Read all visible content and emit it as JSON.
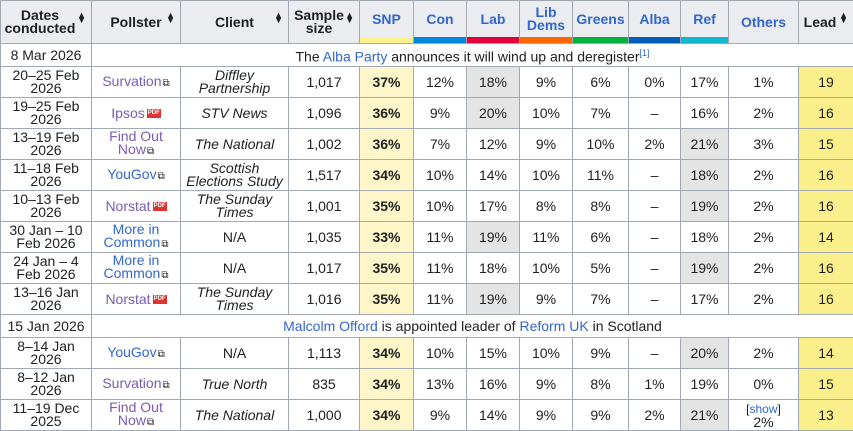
{
  "headers": {
    "dates": "Dates conducted",
    "pollster": "Pollster",
    "client": "Client",
    "sample": "Sample size",
    "lead": "Lead",
    "others": "Others",
    "parties": [
      {
        "name": "SNP",
        "color": "#fdf38e"
      },
      {
        "name": "Con",
        "color": "#0087dc"
      },
      {
        "name": "Lab",
        "color": "#e4003b"
      },
      {
        "name": "Lib Dems",
        "color": "#ff6600"
      },
      {
        "name": "Greens",
        "color": "#00b140"
      },
      {
        "name": "Alba",
        "color": "#005eb8"
      },
      {
        "name": "Ref",
        "color": "#12b6cf"
      }
    ]
  },
  "rows": [
    {
      "type": "event",
      "date": "8 Mar 2026",
      "parts": [
        {
          "t": "The "
        },
        {
          "t": "Alba Party",
          "link": true
        },
        {
          "t": " announces it will wind up and deregister"
        },
        {
          "t": "[1]",
          "sup": true
        }
      ]
    },
    {
      "type": "poll",
      "date": "20–25 Feb 2026",
      "pollster": "Survation",
      "icon": "ext",
      "visited": true,
      "client": "Diffley Partnership",
      "sample": "1,017",
      "vals": [
        "37%",
        "12%",
        "18%",
        "9%",
        "6%",
        "0%",
        "17%"
      ],
      "second": 2,
      "others": "1%",
      "lead": "19"
    },
    {
      "type": "poll",
      "date": "19–25 Feb 2026",
      "pollster": "Ipsos",
      "icon": "pdf",
      "visited": true,
      "client": "STV News",
      "sample": "1,096",
      "vals": [
        "36%",
        "9%",
        "20%",
        "10%",
        "7%",
        "–",
        "16%"
      ],
      "second": 2,
      "others": "2%",
      "lead": "16"
    },
    {
      "type": "poll",
      "date": "13–19 Feb 2026",
      "pollster": "Find Out Now",
      "icon": "ext",
      "visited": true,
      "client": "The National",
      "sample": "1,002",
      "vals": [
        "36%",
        "7%",
        "12%",
        "9%",
        "10%",
        "2%",
        "21%"
      ],
      "second": 6,
      "others": "3%",
      "lead": "15"
    },
    {
      "type": "poll",
      "date": "11–18 Feb 2026",
      "pollster": "YouGov",
      "icon": "ext",
      "visited": false,
      "client": "Scottish Elections Study",
      "sample": "1,517",
      "vals": [
        "34%",
        "10%",
        "14%",
        "10%",
        "11%",
        "–",
        "18%"
      ],
      "second": 6,
      "others": "2%",
      "lead": "16"
    },
    {
      "type": "poll",
      "date": "10–13 Feb 2026",
      "pollster": "Norstat",
      "icon": "pdf",
      "visited": true,
      "client": "The Sunday Times",
      "sample": "1,001",
      "vals": [
        "35%",
        "10%",
        "17%",
        "8%",
        "8%",
        "–",
        "19%"
      ],
      "second": 6,
      "others": "2%",
      "lead": "16"
    },
    {
      "type": "poll",
      "date": "30 Jan – 10 Feb 2026",
      "pollster": "More in Common",
      "icon": "ext",
      "visited": false,
      "client": "N/A",
      "clientPlain": true,
      "sample": "1,035",
      "vals": [
        "33%",
        "11%",
        "19%",
        "11%",
        "6%",
        "–",
        "18%"
      ],
      "second": 2,
      "others": "2%",
      "lead": "14"
    },
    {
      "type": "poll",
      "date": "24 Jan – 4 Feb 2026",
      "pollster": "More in Common",
      "icon": "ext",
      "visited": false,
      "client": "N/A",
      "clientPlain": true,
      "sample": "1,017",
      "vals": [
        "35%",
        "11%",
        "18%",
        "10%",
        "5%",
        "–",
        "19%"
      ],
      "second": 6,
      "others": "2%",
      "lead": "16"
    },
    {
      "type": "poll",
      "date": "13–16 Jan 2026",
      "pollster": "Norstat",
      "icon": "pdf",
      "visited": true,
      "client": "The Sunday Times",
      "sample": "1,016",
      "vals": [
        "35%",
        "11%",
        "19%",
        "9%",
        "7%",
        "–",
        "17%"
      ],
      "second": 2,
      "others": "2%",
      "lead": "16"
    },
    {
      "type": "event",
      "date": "15 Jan 2026",
      "parts": [
        {
          "t": "Malcolm Offord",
          "link": true
        },
        {
          "t": " is appointed leader of "
        },
        {
          "t": "Reform UK",
          "link": true
        },
        {
          "t": " in Scotland"
        }
      ]
    },
    {
      "type": "poll",
      "date": "8–14 Jan 2026",
      "pollster": "YouGov",
      "icon": "ext",
      "visited": false,
      "client": "N/A",
      "clientPlain": true,
      "sample": "1,113",
      "vals": [
        "34%",
        "10%",
        "15%",
        "10%",
        "9%",
        "–",
        "20%"
      ],
      "second": 6,
      "others": "2%",
      "lead": "14"
    },
    {
      "type": "poll",
      "date": "8–12 Jan 2026",
      "pollster": "Survation",
      "icon": "ext",
      "visited": true,
      "client": "True North",
      "sample": "835",
      "vals": [
        "34%",
        "13%",
        "16%",
        "9%",
        "8%",
        "1%",
        "19%"
      ],
      "second": -1,
      "others": "0%",
      "lead": "15"
    },
    {
      "type": "poll",
      "date": "11–19 Dec 2025",
      "pollster": "Find Out Now",
      "icon": "ext",
      "visited": true,
      "client": "The National",
      "sample": "1,000",
      "vals": [
        "34%",
        "9%",
        "14%",
        "9%",
        "9%",
        "2%",
        "21%"
      ],
      "second": 6,
      "others": "2%",
      "othersShow": "show",
      "lead": "13"
    }
  ]
}
